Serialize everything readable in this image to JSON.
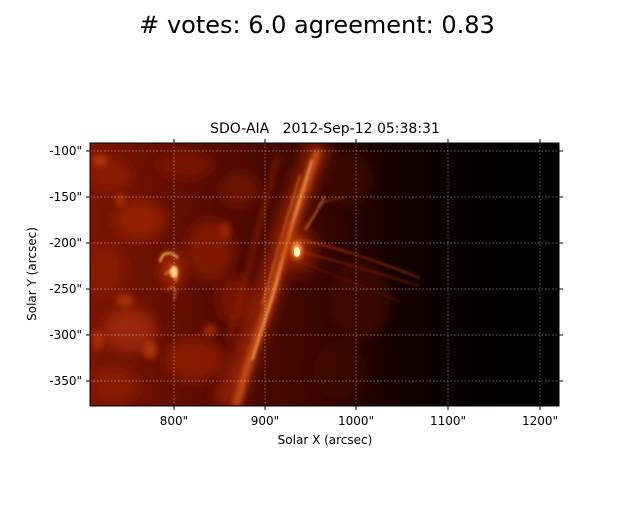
{
  "figure": {
    "suptitle": "# votes: 6.0 agreement: 0.83"
  },
  "image_panel": {
    "title": "SDO-AIA   2012-Sep-12 05:38:31",
    "xlabel": "Solar X (arcsec)",
    "ylabel": "Solar Y (arcsec)",
    "colormap": "sdoaia171 (black-red-orange-yellow)",
    "colors": {
      "background": "#000000",
      "dark_red": "#5a0a00",
      "red": "#a82a06",
      "orange": "#e0641a",
      "yellow": "#ffe7a0",
      "grid": "#ffffff"
    },
    "xlim": [
      708,
      1222
    ],
    "ylim": [
      -378,
      -90
    ],
    "x_ticks": [
      {
        "value": 800,
        "label": "800\""
      },
      {
        "value": 900,
        "label": "900\""
      },
      {
        "value": 1000,
        "label": "1000\""
      },
      {
        "value": 1100,
        "label": "1100\""
      },
      {
        "value": 1200,
        "label": "1200\""
      }
    ],
    "y_ticks": [
      {
        "value": -100,
        "label": "-100\""
      },
      {
        "value": -150,
        "label": "-150\""
      },
      {
        "value": -200,
        "label": "-200\""
      },
      {
        "value": -250,
        "label": "-250\""
      },
      {
        "value": -300,
        "label": "-300\""
      },
      {
        "value": -350,
        "label": "-350\""
      }
    ],
    "grid": true,
    "grid_style": "dotted"
  }
}
